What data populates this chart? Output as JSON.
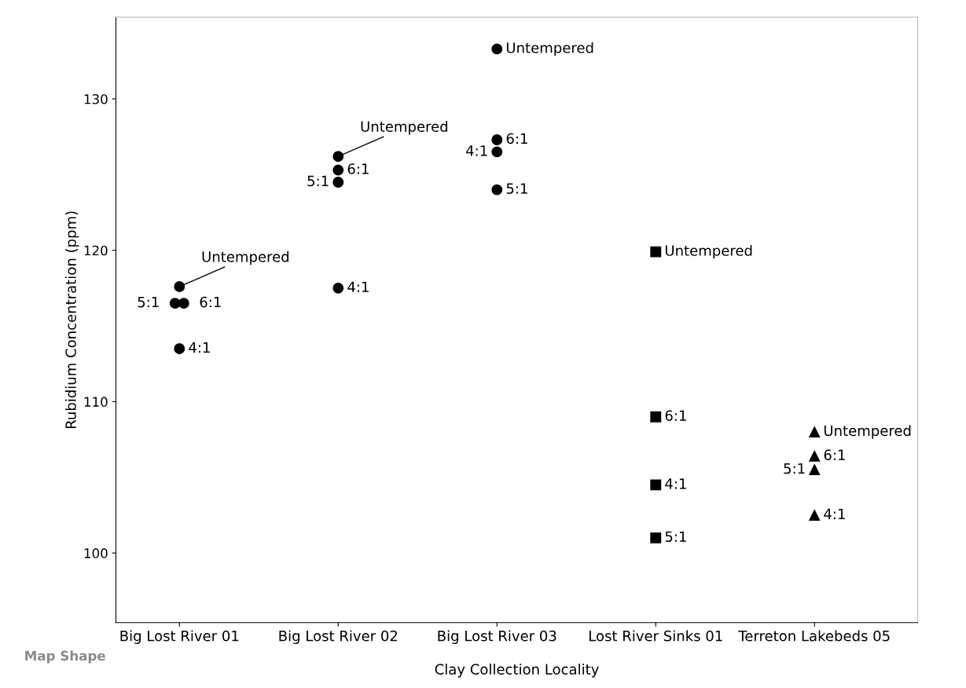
{
  "chart_data": {
    "type": "scatter",
    "xlabel": "Clay Collection Locality",
    "ylabel": "Rubidium Concentration (ppm)",
    "categories": [
      "Big Lost River 01",
      "Big Lost River 02",
      "Big Lost River 03",
      "Lost River Sinks 01",
      "Terreton Lakebeds 05"
    ],
    "ylim": [
      95.4,
      135.4
    ],
    "yticks": [
      100,
      110,
      120,
      130
    ],
    "grid": false,
    "legend": false,
    "series": [
      {
        "color": "#000000",
        "marker": "circle",
        "x": [
          "Big Lost River 01",
          "Big Lost River 01",
          "Big Lost River 01",
          "Big Lost River 01",
          "Big Lost River 02",
          "Big Lost River 02",
          "Big Lost River 02",
          "Big Lost River 02",
          "Big Lost River 03",
          "Big Lost River 03",
          "Big Lost River 03",
          "Big Lost River 03"
        ],
        "values": [
          117.6,
          116.5,
          116.5,
          113.5,
          126.2,
          125.3,
          124.5,
          117.5,
          133.3,
          127.3,
          126.5,
          124.0
        ]
      },
      {
        "color": "#000000",
        "marker": "square",
        "x": [
          "Lost River Sinks 01",
          "Lost River Sinks 01",
          "Lost River Sinks 01",
          "Lost River Sinks 01"
        ],
        "values": [
          119.9,
          109.0,
          104.5,
          101.0
        ]
      },
      {
        "color": "#000000",
        "marker": "triangle",
        "x": [
          "Terreton Lakebeds 05",
          "Terreton Lakebeds 05",
          "Terreton Lakebeds 05",
          "Terreton Lakebeds 05"
        ],
        "values": [
          108.0,
          106.4,
          105.5,
          102.5
        ]
      }
    ],
    "annotations": [
      {
        "text": "Untempered",
        "x": "Big Lost River 01",
        "y": 117.6
      },
      {
        "text": "6:1",
        "x": "Big Lost River 01",
        "y": 116.5
      },
      {
        "text": "5:1",
        "x": "Big Lost River 01",
        "y": 116.5
      },
      {
        "text": "4:1",
        "x": "Big Lost River 01",
        "y": 113.5
      },
      {
        "text": "Untempered",
        "x": "Big Lost River 02",
        "y": 126.2
      },
      {
        "text": "6:1",
        "x": "Big Lost River 02",
        "y": 125.3
      },
      {
        "text": "5:1",
        "x": "Big Lost River 02",
        "y": 124.5
      },
      {
        "text": "4:1",
        "x": "Big Lost River 02",
        "y": 117.5
      },
      {
        "text": "Untempered",
        "x": "Big Lost River 03",
        "y": 133.3
      },
      {
        "text": "6:1",
        "x": "Big Lost River 03",
        "y": 127.3
      },
      {
        "text": "4:1",
        "x": "Big Lost River 03",
        "y": 126.5
      },
      {
        "text": "5:1",
        "x": "Big Lost River 03",
        "y": 124.0
      },
      {
        "text": "Untempered",
        "x": "Lost River Sinks 01",
        "y": 119.9
      },
      {
        "text": "6:1",
        "x": "Lost River Sinks 01",
        "y": 109.0
      },
      {
        "text": "4:1",
        "x": "Lost River Sinks 01",
        "y": 104.5
      },
      {
        "text": "5:1",
        "x": "Lost River Sinks 01",
        "y": 101.0
      },
      {
        "text": "Untempered",
        "x": "Terreton Lakebeds 05",
        "y": 108.0
      },
      {
        "text": "6:1",
        "x": "Terreton Lakebeds 05",
        "y": 106.4
      },
      {
        "text": "5:1",
        "x": "Terreton Lakebeds 05",
        "y": 105.5
      },
      {
        "text": "4:1",
        "x": "Terreton Lakebeds 05",
        "y": 102.5
      },
      "Map Shape"
    ]
  }
}
